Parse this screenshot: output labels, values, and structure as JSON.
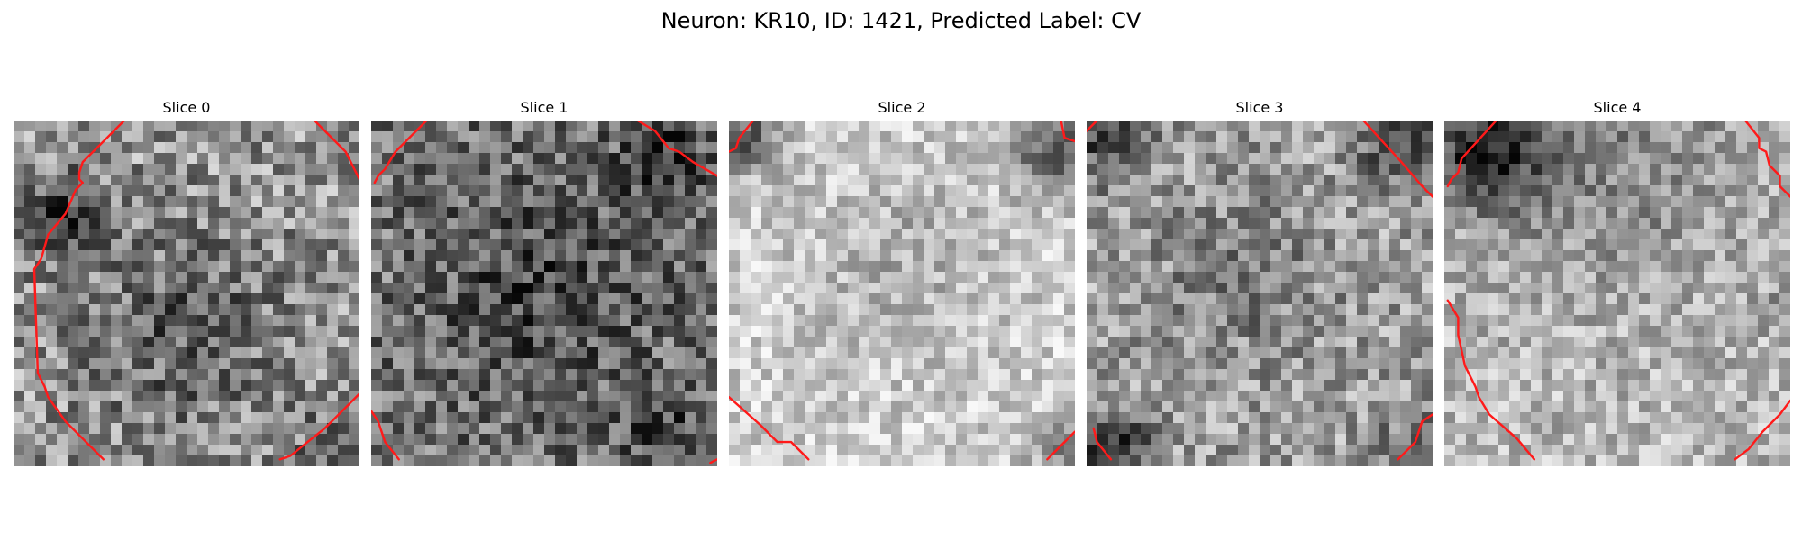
{
  "figure": {
    "title": "Neuron: KR10, ID: 1421, Predicted Label: CV"
  },
  "colors": {
    "contour": "#ff1a1a",
    "colormap": "gray"
  },
  "panels": [
    {
      "title": "Slice 0",
      "seed": 11,
      "base": 0.58,
      "noise": 0.28,
      "darkSpots": [
        [
          0.5,
          0.62,
          0.26,
          0.22
        ],
        [
          0.15,
          0.28,
          0.12,
          0.35
        ],
        [
          0.95,
          0.95,
          0.12,
          0.25
        ]
      ],
      "contours": [
        [
          [
            0.32,
            0.0
          ],
          [
            0.2,
            0.12
          ],
          [
            0.19,
            0.15
          ],
          [
            0.19,
            0.17
          ],
          [
            0.2,
            0.18
          ],
          [
            0.18,
            0.2
          ],
          [
            0.15,
            0.27
          ],
          [
            0.1,
            0.33
          ],
          [
            0.08,
            0.4
          ],
          [
            0.06,
            0.43
          ],
          [
            0.07,
            0.73
          ],
          [
            0.09,
            0.77
          ],
          [
            0.1,
            0.8
          ],
          [
            0.15,
            0.87
          ],
          [
            0.2,
            0.92
          ],
          [
            0.26,
            0.98
          ]
        ],
        [
          [
            0.87,
            0.0
          ],
          [
            0.96,
            0.09
          ],
          [
            0.98,
            0.13
          ],
          [
            1.0,
            0.17
          ]
        ],
        [
          [
            0.77,
            0.98
          ],
          [
            0.8,
            0.97
          ],
          [
            0.85,
            0.93
          ],
          [
            0.9,
            0.89
          ],
          [
            0.95,
            0.84
          ],
          [
            1.0,
            0.79
          ]
        ]
      ]
    },
    {
      "title": "Slice 1",
      "seed": 23,
      "base": 0.45,
      "noise": 0.27,
      "darkSpots": [
        [
          0.5,
          0.5,
          0.3,
          0.18
        ],
        [
          0.85,
          0.12,
          0.12,
          0.28
        ],
        [
          0.85,
          0.9,
          0.12,
          0.18
        ]
      ],
      "contours": [
        [
          [
            0.16,
            0.0
          ],
          [
            0.07,
            0.09
          ],
          [
            0.04,
            0.14
          ],
          [
            0.02,
            0.16
          ],
          [
            0.01,
            0.18
          ]
        ],
        [
          [
            0.77,
            0.0
          ],
          [
            0.82,
            0.03
          ],
          [
            0.86,
            0.08
          ],
          [
            0.89,
            0.09
          ],
          [
            0.93,
            0.12
          ],
          [
            1.0,
            0.16
          ]
        ],
        [
          [
            0.0,
            0.84
          ],
          [
            0.02,
            0.87
          ],
          [
            0.04,
            0.93
          ],
          [
            0.08,
            0.98
          ]
        ],
        [
          [
            0.98,
            0.99
          ],
          [
            1.0,
            0.98
          ]
        ]
      ]
    },
    {
      "title": "Slice 2",
      "seed": 37,
      "base": 0.8,
      "noise": 0.18,
      "darkSpots": [
        [
          0.5,
          0.4,
          0.25,
          0.12
        ],
        [
          0.05,
          0.05,
          0.1,
          0.45
        ],
        [
          0.95,
          0.08,
          0.12,
          0.5
        ],
        [
          0.96,
          0.96,
          0.08,
          0.3
        ]
      ],
      "contours": [
        [
          [
            0.07,
            0.0
          ],
          [
            0.03,
            0.05
          ],
          [
            0.02,
            0.08
          ],
          [
            0.0,
            0.09
          ]
        ],
        [
          [
            0.96,
            0.0
          ],
          [
            0.97,
            0.05
          ],
          [
            1.0,
            0.06
          ]
        ],
        [
          [
            0.0,
            0.8
          ],
          [
            0.09,
            0.88
          ],
          [
            0.14,
            0.93
          ],
          [
            0.18,
            0.93
          ],
          [
            0.23,
            0.98
          ]
        ],
        [
          [
            0.92,
            0.98
          ],
          [
            0.97,
            0.93
          ],
          [
            1.0,
            0.9
          ]
        ]
      ]
    },
    {
      "title": "Slice 3",
      "seed": 49,
      "base": 0.62,
      "noise": 0.24,
      "darkSpots": [
        [
          0.45,
          0.45,
          0.23,
          0.15
        ],
        [
          0.08,
          0.95,
          0.1,
          0.5
        ],
        [
          0.06,
          0.05,
          0.12,
          0.35
        ],
        [
          0.93,
          0.05,
          0.14,
          0.4
        ],
        [
          0.95,
          0.96,
          0.1,
          0.3
        ]
      ],
      "contours": [
        [
          [
            0.0,
            0.03
          ],
          [
            0.03,
            0.0
          ]
        ],
        [
          [
            0.8,
            0.0
          ],
          [
            0.91,
            0.12
          ],
          [
            0.97,
            0.19
          ],
          [
            0.98,
            0.2
          ],
          [
            1.0,
            0.22
          ]
        ],
        [
          [
            0.02,
            0.89
          ],
          [
            0.03,
            0.93
          ],
          [
            0.07,
            0.98
          ]
        ],
        [
          [
            0.9,
            0.98
          ],
          [
            0.95,
            0.93
          ],
          [
            0.97,
            0.87
          ],
          [
            1.0,
            0.85
          ]
        ]
      ]
    },
    {
      "title": "Slice 4",
      "seed": 61,
      "base": 0.72,
      "noise": 0.2,
      "darkSpots": [
        [
          0.12,
          0.1,
          0.16,
          0.55
        ],
        [
          0.5,
          0.08,
          0.4,
          0.2
        ],
        [
          0.97,
          0.55,
          0.06,
          0.2
        ]
      ],
      "contours": [
        [
          [
            0.15,
            0.0
          ],
          [
            0.05,
            0.11
          ],
          [
            0.04,
            0.15
          ],
          [
            0.02,
            0.17
          ],
          [
            0.01,
            0.19
          ]
        ],
        [
          [
            0.87,
            0.0
          ],
          [
            0.91,
            0.05
          ],
          [
            0.91,
            0.08
          ],
          [
            0.93,
            0.09
          ],
          [
            0.94,
            0.13
          ],
          [
            0.97,
            0.16
          ],
          [
            0.97,
            0.19
          ],
          [
            1.0,
            0.22
          ]
        ],
        [
          [
            0.01,
            0.52
          ],
          [
            0.04,
            0.57
          ],
          [
            0.04,
            0.62
          ],
          [
            0.06,
            0.71
          ],
          [
            0.09,
            0.77
          ],
          [
            0.1,
            0.8
          ],
          [
            0.13,
            0.85
          ],
          [
            0.21,
            0.92
          ],
          [
            0.26,
            0.98
          ]
        ],
        [
          [
            0.84,
            0.98
          ],
          [
            0.88,
            0.95
          ],
          [
            0.92,
            0.9
          ],
          [
            0.97,
            0.85
          ],
          [
            1.0,
            0.81
          ]
        ]
      ]
    }
  ]
}
